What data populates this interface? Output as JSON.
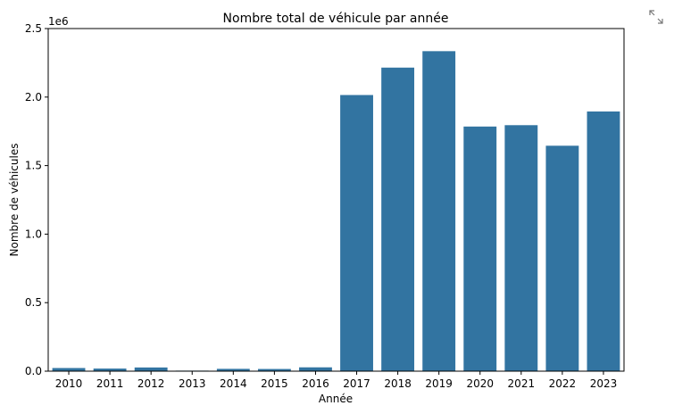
{
  "chart_data": {
    "type": "bar",
    "title": "Nombre total de véhicule par année",
    "xlabel": "Année",
    "ylabel": "Nombre de véhicules",
    "offset_text": "1e6",
    "categories": [
      "2010",
      "2011",
      "2012",
      "2013",
      "2014",
      "2015",
      "2016",
      "2017",
      "2018",
      "2019",
      "2020",
      "2021",
      "2022",
      "2023"
    ],
    "values": [
      23000,
      19000,
      27000,
      4000,
      17000,
      16000,
      28000,
      2015000,
      2215000,
      2335000,
      1785000,
      1795000,
      1645000,
      1895000
    ],
    "ylim": [
      0,
      2500000
    ],
    "y_ticks": [
      0,
      500000,
      1000000,
      1500000,
      2000000,
      2500000
    ],
    "y_tick_labels": [
      "0.0",
      "0.5",
      "1.0",
      "1.5",
      "2.0",
      "2.5"
    ],
    "bar_color": "#3274a1",
    "grid": false,
    "legend": "none"
  },
  "toolbar": {
    "expand_icon": "expand-icon"
  }
}
